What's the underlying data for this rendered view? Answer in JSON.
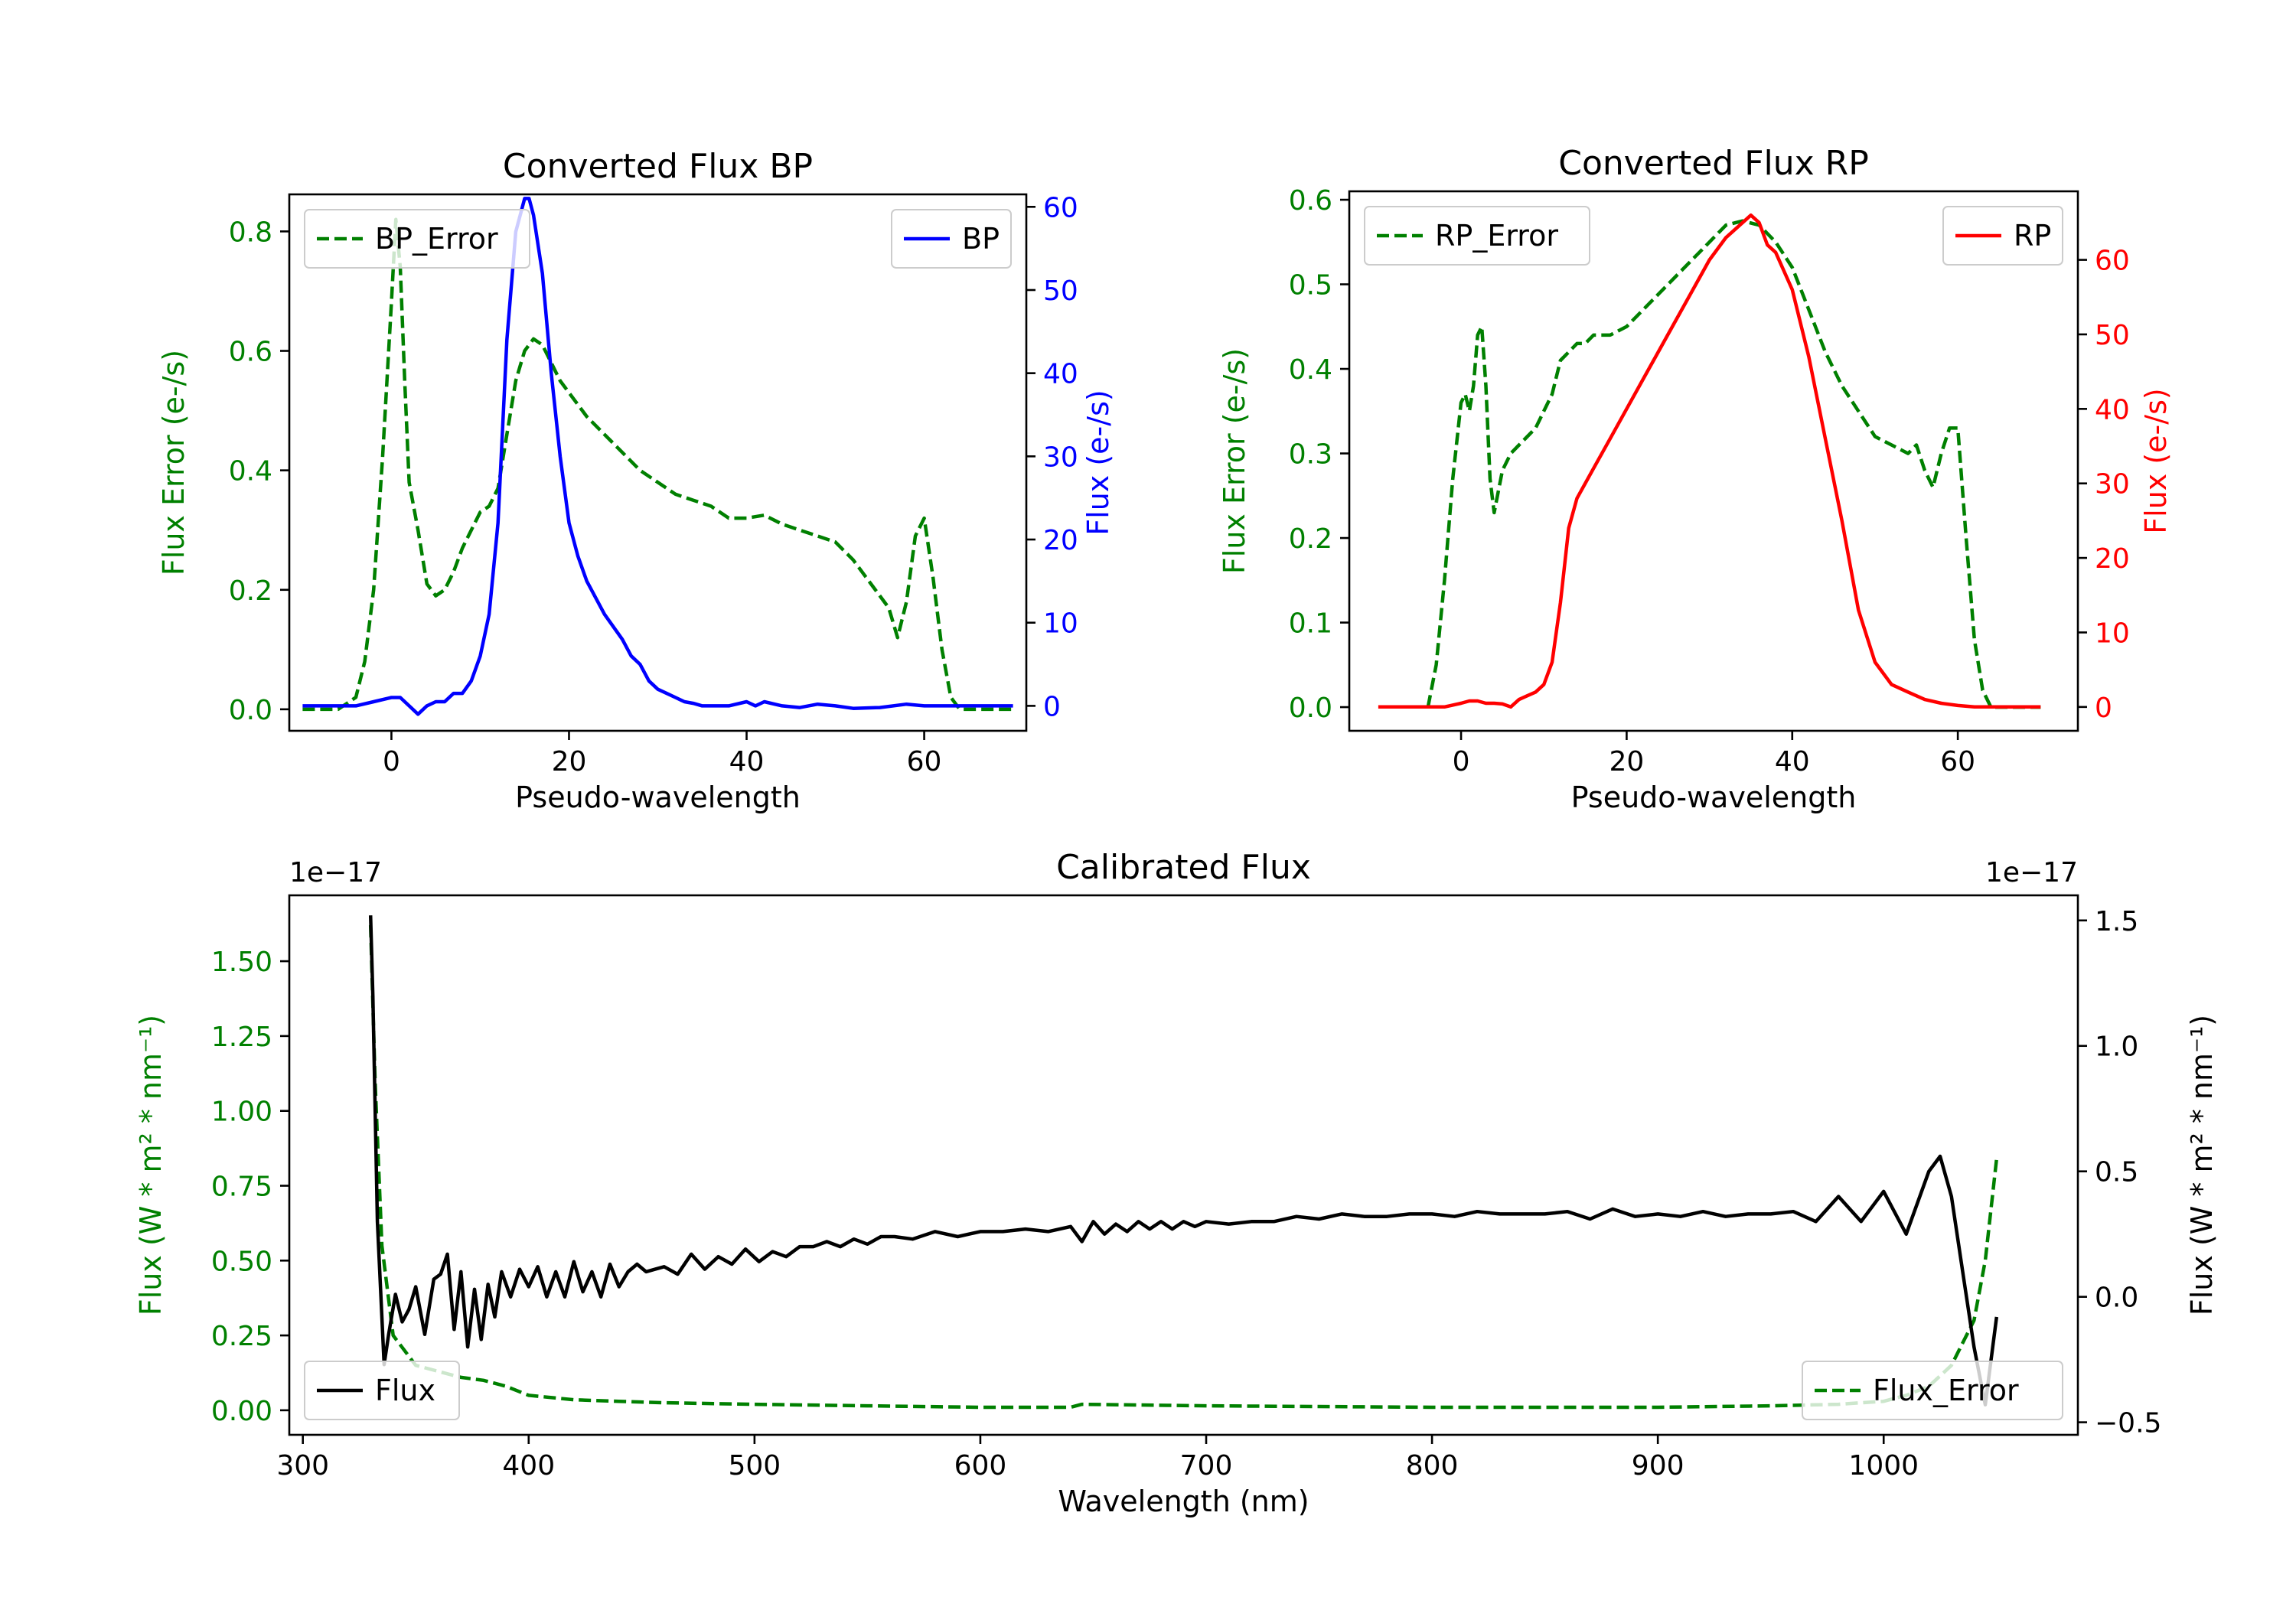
{
  "figure": {
    "layout": "two panels on top, one wide panel below"
  },
  "chart_data": [
    {
      "id": "bp",
      "type": "line",
      "title": "Converted Flux BP",
      "xlabel": "Pseudo-wavelength",
      "ylabel_left": "Flux Error (e-/s)",
      "ylabel_right": "Flux (e-/s)",
      "xlim": [
        -11.5,
        71.5
      ],
      "ylim_left": [
        -0.036,
        0.862
      ],
      "ylim_right": [
        -3.0,
        61.5
      ],
      "xticks": [
        0,
        20,
        40,
        60
      ],
      "xtick_labels": [
        "0",
        "20",
        "40",
        "60"
      ],
      "yticks_left": [
        0.0,
        0.2,
        0.4,
        0.6,
        0.8
      ],
      "ytick_labels_left": [
        "0.0",
        "0.2",
        "0.4",
        "0.6",
        "0.8"
      ],
      "yticks_right": [
        0,
        10,
        20,
        30,
        40,
        50,
        60
      ],
      "ytick_labels_right": [
        "0",
        "10",
        "20",
        "30",
        "40",
        "50",
        "60"
      ],
      "left_color": "#008000",
      "right_color": "#0000ff",
      "legend_left": {
        "label": "BP_Error",
        "position": "upper left"
      },
      "legend_right": {
        "label": "BP",
        "position": "upper right"
      },
      "series": [
        {
          "name": "BP_Error",
          "axis": "left",
          "style": "dashed",
          "color": "#008000",
          "x": [
            -10,
            -6,
            -4,
            -3,
            -2,
            -1,
            0,
            0.5,
            1,
            1.5,
            2,
            3,
            4,
            5,
            6,
            7,
            8,
            9,
            10,
            11,
            12,
            13,
            14,
            15,
            16,
            17,
            18,
            19,
            20,
            22,
            24,
            26,
            28,
            30,
            32,
            34,
            36,
            38,
            40,
            42,
            44,
            46,
            48,
            50,
            52,
            54,
            56,
            57,
            58,
            59,
            60,
            61,
            62,
            63,
            64,
            66,
            68,
            70
          ],
          "y": [
            0.0,
            0.0,
            0.02,
            0.08,
            0.2,
            0.42,
            0.68,
            0.82,
            0.74,
            0.55,
            0.38,
            0.3,
            0.21,
            0.19,
            0.2,
            0.23,
            0.27,
            0.3,
            0.33,
            0.34,
            0.37,
            0.46,
            0.55,
            0.6,
            0.62,
            0.61,
            0.58,
            0.55,
            0.53,
            0.49,
            0.46,
            0.43,
            0.4,
            0.38,
            0.36,
            0.35,
            0.34,
            0.32,
            0.32,
            0.325,
            0.31,
            0.3,
            0.29,
            0.28,
            0.25,
            0.21,
            0.17,
            0.12,
            0.18,
            0.29,
            0.32,
            0.22,
            0.1,
            0.02,
            0.0,
            0.0,
            0.0,
            0.0
          ]
        },
        {
          "name": "BP",
          "axis": "right",
          "style": "solid",
          "color": "#0000ff",
          "x": [
            -10,
            -4,
            -2,
            0,
            1,
            2,
            3,
            4,
            5,
            6,
            7,
            8,
            9,
            10,
            11,
            12,
            13,
            14,
            15,
            15.5,
            16,
            17,
            18,
            19,
            20,
            21,
            22,
            24,
            26,
            27,
            28,
            29,
            30,
            31,
            32,
            33,
            34,
            35,
            36,
            38,
            40,
            41,
            42,
            44,
            46,
            48,
            50,
            52,
            55,
            58,
            60,
            62,
            64,
            66,
            68,
            70
          ],
          "y": [
            0,
            0,
            0.5,
            1,
            1,
            0,
            -1,
            0,
            0.5,
            0.5,
            1.5,
            1.5,
            3,
            6,
            11,
            22,
            44,
            57,
            61,
            61,
            59,
            52,
            40,
            30,
            22,
            18,
            15,
            11,
            8,
            6,
            5,
            3,
            2,
            1.5,
            1,
            0.5,
            0.3,
            0,
            0,
            0,
            0.5,
            0,
            0.5,
            0,
            -0.2,
            0.2,
            0,
            -0.3,
            -0.2,
            0.2,
            0,
            0,
            0,
            0,
            0,
            0
          ]
        }
      ]
    },
    {
      "id": "rp",
      "type": "line",
      "title": "Converted Flux RP",
      "xlabel": "Pseudo-wavelength",
      "ylabel_left": "Flux Error (e-/s)",
      "ylabel_right": "Flux (e-/s)",
      "xlim": [
        -13.5,
        74.5
      ],
      "ylim_left": [
        -0.028,
        0.61
      ],
      "ylim_right": [
        -3.2,
        69.2
      ],
      "xticks": [
        0,
        20,
        40,
        60
      ],
      "xtick_labels": [
        "0",
        "20",
        "40",
        "60"
      ],
      "yticks_left": [
        0.0,
        0.1,
        0.2,
        0.3,
        0.4,
        0.5,
        0.6
      ],
      "ytick_labels_left": [
        "0.0",
        "0.1",
        "0.2",
        "0.3",
        "0.4",
        "0.5",
        "0.6"
      ],
      "yticks_right": [
        0,
        10,
        20,
        30,
        40,
        50,
        60
      ],
      "ytick_labels_right": [
        "0",
        "10",
        "20",
        "30",
        "40",
        "50",
        "60"
      ],
      "left_color": "#008000",
      "right_color": "#ff0000",
      "legend_left": {
        "label": "RP_Error",
        "position": "upper left"
      },
      "legend_right": {
        "label": "RP",
        "position": "upper right"
      },
      "series": [
        {
          "name": "RP_Error",
          "axis": "left",
          "style": "dashed",
          "color": "#008000",
          "x": [
            -4,
            -3,
            -2,
            -1,
            0,
            0.5,
            1,
            1.5,
            2,
            2.5,
            3,
            3.5,
            4,
            5,
            6,
            7,
            8,
            9,
            10,
            11,
            12,
            13,
            14,
            15,
            16,
            17,
            18,
            20,
            22,
            24,
            26,
            28,
            30,
            32,
            34,
            36,
            38,
            40,
            42,
            44,
            46,
            48,
            50,
            52,
            54,
            55,
            56,
            57,
            58,
            59,
            60,
            61,
            62,
            63,
            64,
            66,
            68,
            70
          ],
          "y": [
            0.0,
            0.05,
            0.15,
            0.27,
            0.36,
            0.37,
            0.35,
            0.38,
            0.44,
            0.45,
            0.38,
            0.27,
            0.23,
            0.28,
            0.3,
            0.31,
            0.32,
            0.33,
            0.35,
            0.37,
            0.41,
            0.42,
            0.43,
            0.43,
            0.44,
            0.44,
            0.44,
            0.45,
            0.47,
            0.49,
            0.51,
            0.53,
            0.55,
            0.57,
            0.575,
            0.57,
            0.55,
            0.52,
            0.47,
            0.42,
            0.38,
            0.35,
            0.32,
            0.31,
            0.3,
            0.31,
            0.28,
            0.26,
            0.3,
            0.33,
            0.33,
            0.2,
            0.08,
            0.02,
            0.0,
            0.0,
            0.0,
            0.0
          ]
        },
        {
          "name": "RP",
          "axis": "right",
          "style": "solid",
          "color": "#ff0000",
          "x": [
            -10,
            -2,
            0,
            1,
            2,
            3,
            4,
            5,
            6,
            7,
            8,
            9,
            10,
            11,
            12,
            13,
            14,
            16,
            18,
            20,
            22,
            24,
            26,
            28,
            30,
            32,
            34,
            35,
            36,
            37,
            38,
            40,
            42,
            44,
            46,
            48,
            50,
            52,
            54,
            56,
            58,
            60,
            62,
            64,
            66,
            68,
            70
          ],
          "y": [
            0,
            0,
            0.5,
            0.8,
            0.8,
            0.5,
            0.5,
            0.4,
            0,
            1,
            1.5,
            2,
            3,
            6,
            14,
            24,
            28,
            32,
            36,
            40,
            44,
            48,
            52,
            56,
            60,
            63,
            65,
            66,
            65,
            62,
            61,
            56,
            47,
            36,
            25,
            13,
            6,
            3,
            2,
            1,
            0.5,
            0.2,
            0,
            0,
            0,
            0,
            0
          ]
        }
      ]
    },
    {
      "id": "calibrated",
      "type": "line",
      "title": "Calibrated Flux",
      "xlabel": "Wavelength (nm)",
      "ylabel_left": "Flux (W * m² * nm⁻¹)",
      "ylabel_right": "Flux (W * m² * nm⁻¹)",
      "offset_left": "1e−17",
      "offset_right": "1e−17",
      "xlim": [
        294,
        1086
      ],
      "ylim_left": [
        -0.082,
        1.72
      ],
      "ylim_right": [
        -0.55,
        1.6
      ],
      "xticks": [
        300,
        400,
        500,
        600,
        700,
        800,
        900,
        1000
      ],
      "xtick_labels": [
        "300",
        "400",
        "500",
        "600",
        "700",
        "800",
        "900",
        "1000"
      ],
      "yticks_left": [
        0.0,
        0.25,
        0.5,
        0.75,
        1.0,
        1.25,
        1.5
      ],
      "ytick_labels_left": [
        "0.00",
        "0.25",
        "0.50",
        "0.75",
        "1.00",
        "1.25",
        "1.50"
      ],
      "yticks_right": [
        -0.5,
        0.0,
        0.5,
        1.0,
        1.5
      ],
      "ytick_labels_right": [
        "−0.5",
        "0.0",
        "0.5",
        "1.0",
        "1.5"
      ],
      "left_color": "#008000",
      "right_color": "#000000",
      "legend_left": {
        "label": "Flux",
        "position": "lower left"
      },
      "legend_right": {
        "label": "Flux_Error",
        "position": "lower right"
      },
      "series": [
        {
          "name": "Flux_Error",
          "axis": "left",
          "style": "dashed",
          "color": "#008000",
          "x": [
            330,
            332,
            335,
            340,
            350,
            360,
            370,
            380,
            390,
            400,
            420,
            440,
            460,
            500,
            550,
            600,
            640,
            645,
            700,
            800,
            900,
            950,
            980,
            1000,
            1010,
            1020,
            1030,
            1040,
            1045,
            1050
          ],
          "y": [
            1.62,
            1.1,
            0.55,
            0.25,
            0.15,
            0.13,
            0.11,
            0.1,
            0.08,
            0.05,
            0.035,
            0.03,
            0.025,
            0.02,
            0.015,
            0.01,
            0.01,
            0.02,
            0.015,
            0.01,
            0.01,
            0.015,
            0.02,
            0.03,
            0.05,
            0.08,
            0.15,
            0.3,
            0.5,
            0.84
          ]
        },
        {
          "name": "Flux",
          "axis": "right",
          "style": "solid",
          "color": "#000000",
          "x": [
            330,
            331,
            333,
            336,
            338,
            341,
            344,
            347,
            350,
            354,
            358,
            361,
            364,
            367,
            370,
            373,
            376,
            379,
            382,
            385,
            388,
            392,
            396,
            400,
            404,
            408,
            412,
            416,
            420,
            424,
            428,
            432,
            436,
            440,
            444,
            448,
            452,
            456,
            460,
            466,
            472,
            478,
            484,
            490,
            496,
            502,
            508,
            514,
            520,
            526,
            532,
            538,
            544,
            550,
            556,
            562,
            570,
            580,
            590,
            600,
            610,
            620,
            630,
            640,
            645,
            650,
            655,
            660,
            665,
            670,
            675,
            680,
            685,
            690,
            695,
            700,
            710,
            720,
            730,
            740,
            750,
            760,
            770,
            780,
            790,
            800,
            810,
            820,
            830,
            840,
            850,
            860,
            870,
            880,
            890,
            900,
            910,
            920,
            930,
            940,
            950,
            960,
            970,
            980,
            990,
            1000,
            1010,
            1020,
            1025,
            1030,
            1035,
            1040,
            1045,
            1050
          ],
          "y": [
            1.52,
            1.2,
            0.3,
            -0.27,
            -0.15,
            0.01,
            -0.1,
            -0.05,
            0.04,
            -0.15,
            0.07,
            0.09,
            0.17,
            -0.13,
            0.1,
            -0.2,
            0.03,
            -0.17,
            0.05,
            -0.08,
            0.1,
            0.0,
            0.11,
            0.04,
            0.12,
            0.0,
            0.1,
            0.0,
            0.14,
            0.02,
            0.1,
            0.0,
            0.13,
            0.04,
            0.1,
            0.13,
            0.1,
            0.11,
            0.12,
            0.09,
            0.17,
            0.11,
            0.16,
            0.13,
            0.19,
            0.14,
            0.18,
            0.16,
            0.2,
            0.2,
            0.22,
            0.2,
            0.23,
            0.21,
            0.24,
            0.24,
            0.23,
            0.26,
            0.24,
            0.26,
            0.26,
            0.27,
            0.26,
            0.28,
            0.22,
            0.3,
            0.25,
            0.29,
            0.26,
            0.3,
            0.27,
            0.3,
            0.27,
            0.3,
            0.28,
            0.3,
            0.29,
            0.3,
            0.3,
            0.32,
            0.31,
            0.33,
            0.32,
            0.32,
            0.33,
            0.33,
            0.32,
            0.34,
            0.33,
            0.33,
            0.33,
            0.34,
            0.31,
            0.35,
            0.32,
            0.33,
            0.32,
            0.34,
            0.32,
            0.33,
            0.33,
            0.34,
            0.3,
            0.4,
            0.3,
            0.42,
            0.25,
            0.5,
            0.56,
            0.4,
            0.1,
            -0.2,
            -0.43,
            -0.08
          ]
        }
      ]
    }
  ]
}
